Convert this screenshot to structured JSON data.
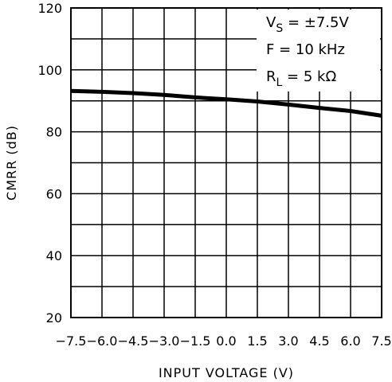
{
  "chart_data": {
    "type": "line",
    "title": "",
    "xlabel": "INPUT VOLTAGE (V)",
    "ylabel": "CMRR (dB)",
    "xlim": [
      -7.5,
      7.5
    ],
    "ylim": [
      20,
      120
    ],
    "grid": true,
    "x_ticks": [
      -7.5,
      -6.0,
      -4.5,
      -3.0,
      -1.5,
      0.0,
      1.5,
      3.0,
      4.5,
      6.0,
      7.5
    ],
    "x_tick_labels": [
      "-7.5",
      "-6.0",
      "-4.5",
      "-3.0",
      "-1.5",
      "0.0",
      "1.5",
      "3.0",
      "4.5",
      "6.0",
      "7.5"
    ],
    "y_ticks": [
      20,
      40,
      60,
      80,
      100,
      120
    ],
    "y_tick_labels": [
      "20",
      "40",
      "60",
      "80",
      "100",
      "120"
    ],
    "series": [
      {
        "x": [
          -7.5,
          -6.0,
          -4.5,
          -3.0,
          -1.5,
          0.0,
          1.5,
          3.0,
          4.5,
          6.0,
          7.5
        ],
        "y": [
          93.2,
          92.9,
          92.5,
          91.9,
          91.1,
          90.5,
          89.8,
          88.8,
          87.7,
          86.7,
          85.2
        ]
      }
    ],
    "annotations": [
      {
        "main": "V",
        "sub": "S",
        "rest": " = ±7.5V"
      },
      {
        "main": "F",
        "sub": "",
        "rest": " = 10 kHz"
      },
      {
        "main": "R",
        "sub": "L",
        "rest": " = 5 kΩ"
      }
    ],
    "annotation_placement": "top-right"
  }
}
